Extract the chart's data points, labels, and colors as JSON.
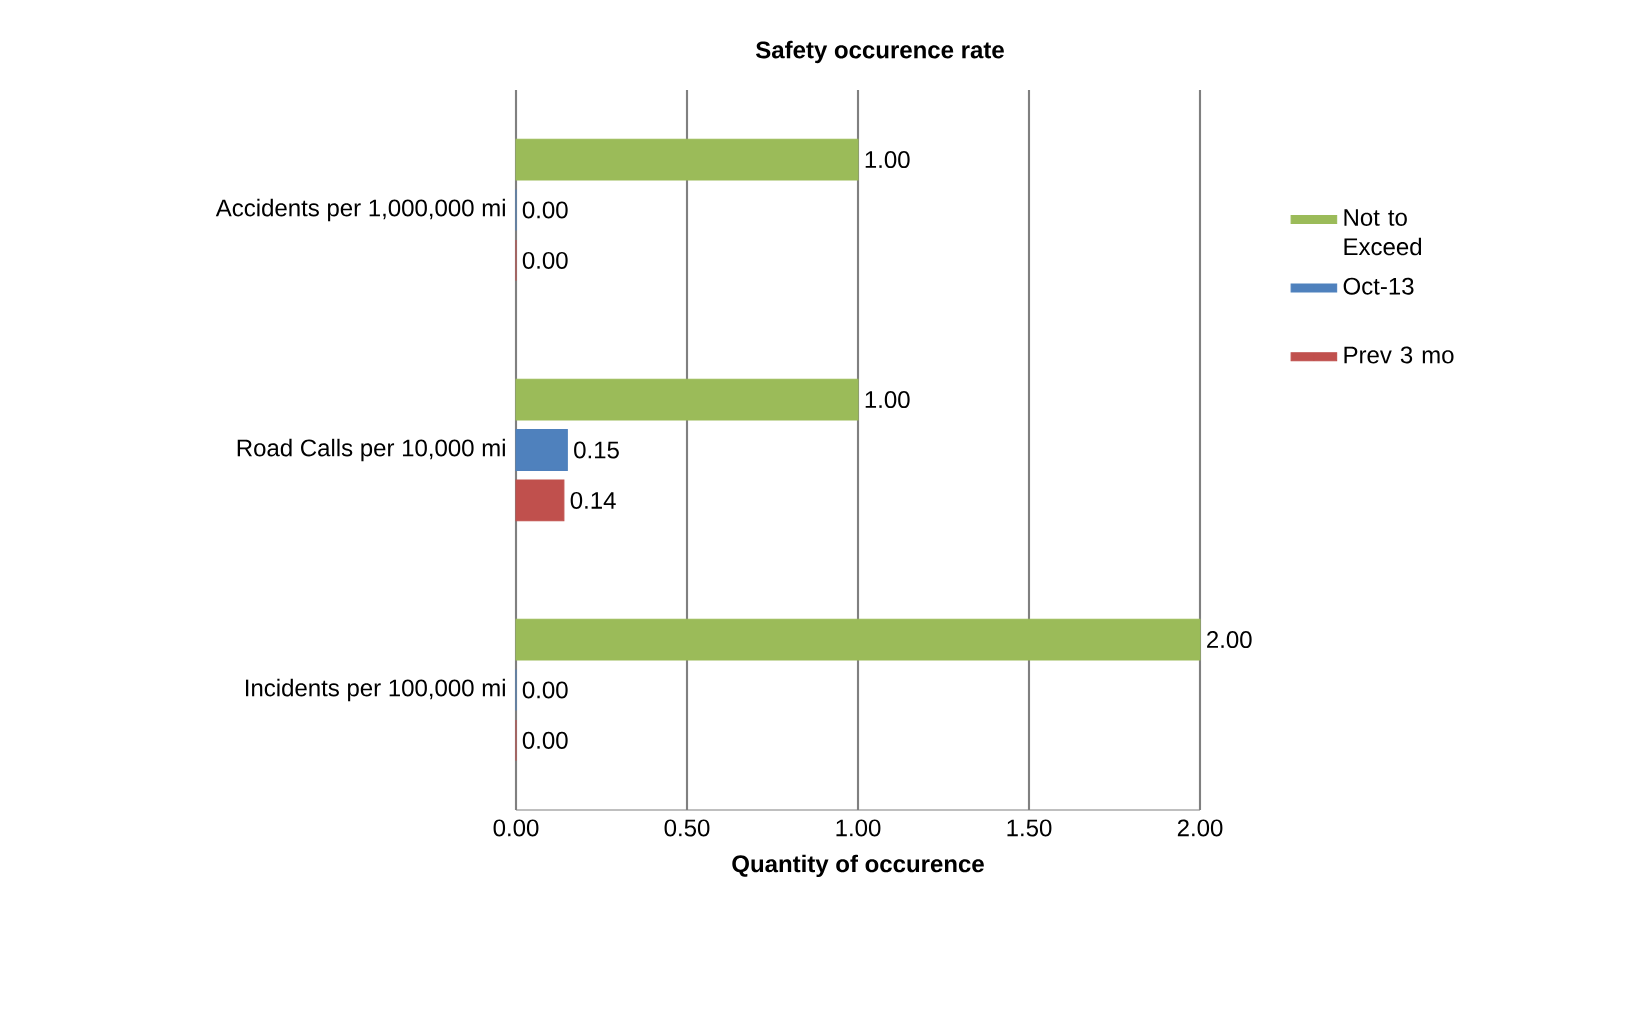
{
  "chart_data": {
    "type": "bar",
    "orientation": "horizontal",
    "title": "Safety occurence rate",
    "xlabel": "Quantity of occurence",
    "categories": [
      "Accidents per 1,000,000 mi",
      "Road Calls per 10,000 mi",
      "Incidents per 100,000 mi"
    ],
    "series": [
      {
        "name": "Not to Exceed",
        "color": "#9bbb59",
        "values": [
          1,
          1,
          2
        ],
        "value_labels": [
          "1.00",
          "1.00",
          "2.00"
        ]
      },
      {
        "name": "Oct-13",
        "color": "#4f81bd",
        "values": [
          0,
          0.15,
          0
        ],
        "value_labels": [
          "0.00",
          "0.15",
          "0.00"
        ]
      },
      {
        "name": "Prev 3 mo",
        "color": "#c0504d",
        "values": [
          0,
          0.14,
          0
        ],
        "value_labels": [
          "0.00",
          "0.14",
          "0.00"
        ]
      }
    ],
    "xlim": [
      0,
      2
    ],
    "xticks": [
      {
        "value": 0,
        "label": "0.00"
      },
      {
        "value": 0.5,
        "label": "0.50"
      },
      {
        "value": 1,
        "label": "1.00"
      },
      {
        "value": 1.5,
        "label": "1.50"
      },
      {
        "value": 2,
        "label": "2.00"
      }
    ],
    "grid": "x",
    "legend": "right"
  }
}
